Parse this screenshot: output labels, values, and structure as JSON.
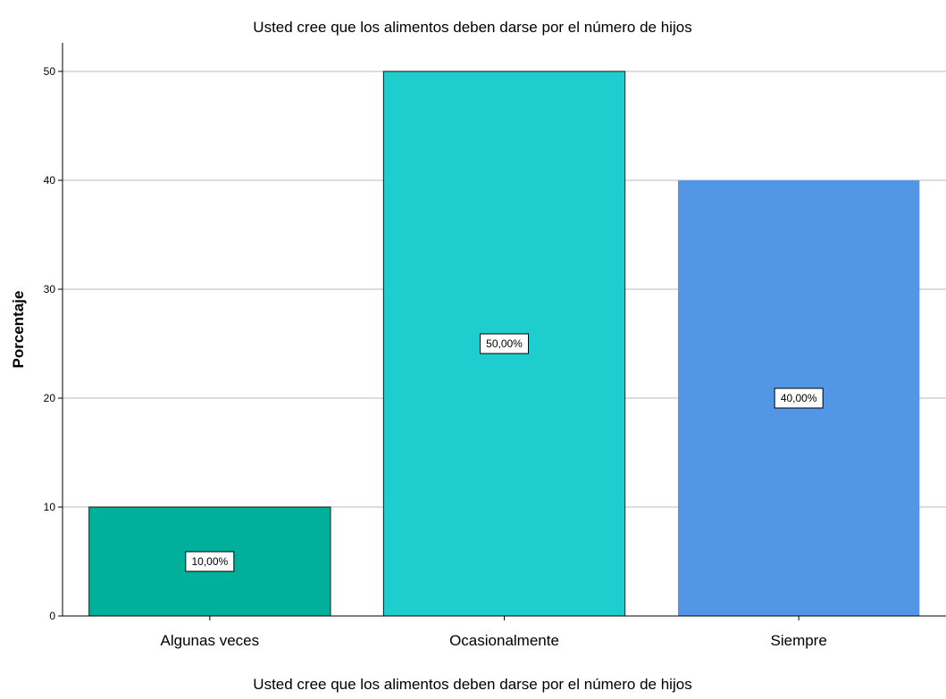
{
  "chart_data": {
    "type": "bar",
    "title": "Usted cree que los alimentos deben darse por el número de hijos",
    "xlabel": "Usted cree que los alimentos deben darse por el número de hijos",
    "ylabel": "Porcentaje",
    "categories": [
      "Algunas veces",
      "Ocasionalmente",
      "Siempre"
    ],
    "values": [
      10,
      50,
      40
    ],
    "data_labels": [
      "10,00%",
      "50,00%",
      "40,00%"
    ],
    "colors": [
      "#00b09a",
      "#1ecdce",
      "#5496e6"
    ],
    "ylim": [
      0,
      50
    ],
    "yticks": [
      "0",
      "10",
      "20",
      "30",
      "40",
      "50"
    ],
    "ytick_values": [
      0,
      10,
      20,
      30,
      40,
      50
    ],
    "grid": true
  }
}
